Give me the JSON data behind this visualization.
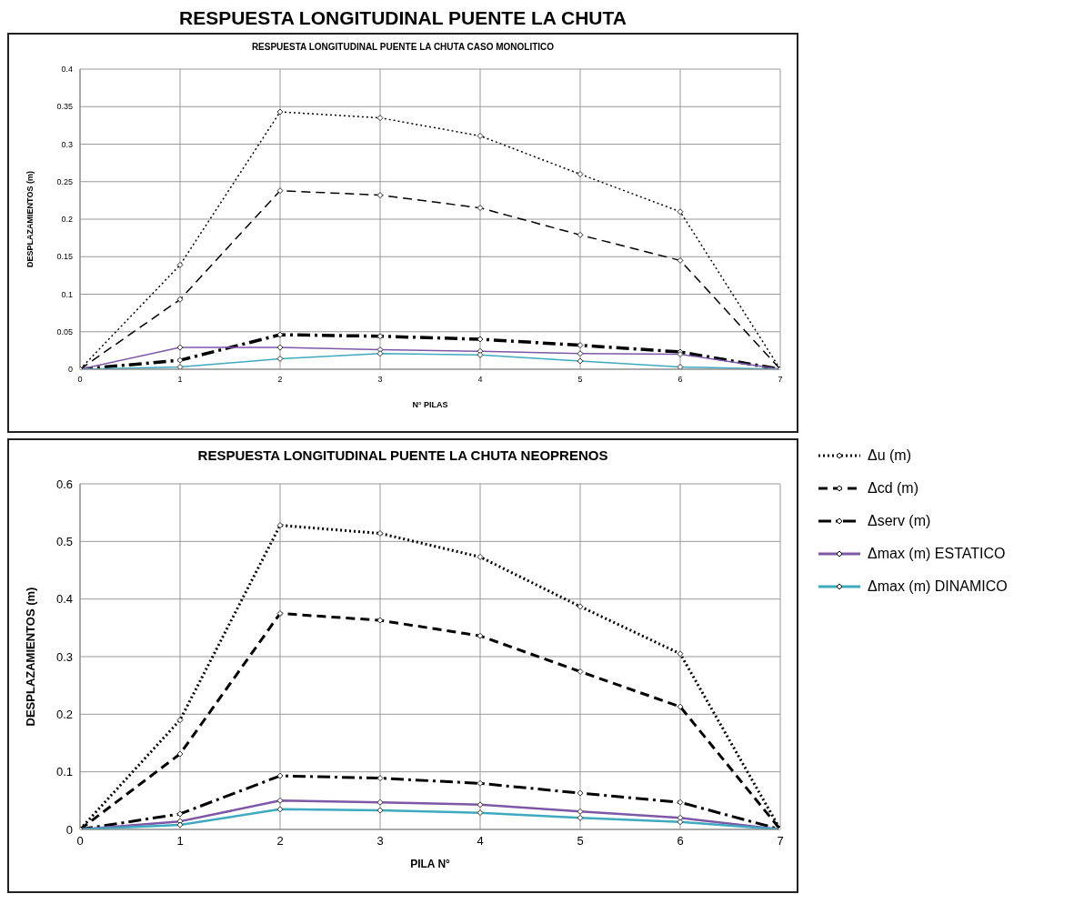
{
  "chart_data": [
    {
      "type": "line",
      "title": "RESPUESTA LONGITUDINAL PUENTE LA CHUTA",
      "subtitle": "RESPUESTA LONGITUDINAL PUENTE LA CHUTA CASO MONOLITICO",
      "xlabel": "N° PILAS",
      "ylabel": "DESPLAZAMIENTOS (m)",
      "x": [
        0,
        1,
        2,
        3,
        4,
        5,
        6,
        7
      ],
      "xlim": [
        0,
        7
      ],
      "xticks": [
        0,
        1,
        2,
        3,
        4,
        5,
        6,
        7
      ],
      "ylim": [
        0,
        0.4
      ],
      "yticks": [
        0,
        0.05,
        0.1,
        0.15,
        0.2,
        0.25,
        0.3,
        0.35,
        0.4
      ],
      "grid": true,
      "marker": "diamond",
      "legend": false,
      "series": [
        {
          "color": "#000000",
          "line_style": "dotted",
          "values": [
            0,
            0.139,
            0.343,
            0.335,
            0.311,
            0.26,
            0.21,
            0
          ]
        },
        {
          "color": "#000000",
          "line_style": "dashed",
          "values": [
            0,
            0.093,
            0.238,
            0.232,
            0.215,
            0.179,
            0.145,
            0
          ]
        },
        {
          "color": "#000000",
          "line_style": "dashdot",
          "values": [
            0,
            0.012,
            0.046,
            0.044,
            0.04,
            0.032,
            0.023,
            0
          ]
        },
        {
          "color": "#7e57a8",
          "line_style": "solid",
          "values": [
            0,
            0.029,
            0.029,
            0.026,
            0.024,
            0.021,
            0.02,
            0
          ]
        },
        {
          "color": "#3fa9c0",
          "line_style": "solid",
          "values": [
            0,
            0.003,
            0.014,
            0.021,
            0.019,
            0.011,
            0.003,
            0
          ]
        }
      ]
    },
    {
      "type": "line",
      "title": "RESPUESTA  LONGITUDINAL PUENTE  LA CHUTA  NEOPRENOS",
      "xlabel": "PILA N°",
      "ylabel": "DESPLAZAMIENTOS  (m)",
      "x": [
        0,
        1,
        2,
        3,
        4,
        5,
        6,
        7
      ],
      "xlim": [
        0,
        7
      ],
      "xticks": [
        0,
        1,
        2,
        3,
        4,
        5,
        6,
        7
      ],
      "ylim": [
        0,
        0.6
      ],
      "yticks": [
        0,
        0.1,
        0.2,
        0.3,
        0.4,
        0.5,
        0.6
      ],
      "grid": true,
      "marker": "diamond",
      "legend": "right",
      "series": [
        {
          "name": "Δu (m)",
          "color": "#000000",
          "line_style": "dotted",
          "values": [
            0,
            0.19,
            0.528,
            0.514,
            0.473,
            0.387,
            0.305,
            0
          ]
        },
        {
          "name": "Δcd (m)",
          "color": "#000000",
          "line_style": "dashed",
          "values": [
            0,
            0.131,
            0.375,
            0.363,
            0.336,
            0.274,
            0.213,
            0
          ]
        },
        {
          "name": "Δserv (m)",
          "color": "#000000",
          "line_style": "dashdot",
          "values": [
            0,
            0.027,
            0.093,
            0.089,
            0.08,
            0.063,
            0.047,
            0
          ]
        },
        {
          "name": "Δmax (m) ESTATICO",
          "color": "#7e57a8",
          "line_style": "solid",
          "values": [
            0,
            0.014,
            0.05,
            0.047,
            0.043,
            0.031,
            0.02,
            0
          ]
        },
        {
          "name": "Δmax (m) DINAMICO",
          "color": "#3fa9c0",
          "line_style": "solid",
          "values": [
            0,
            0.008,
            0.035,
            0.033,
            0.029,
            0.02,
            0.013,
            0
          ]
        }
      ]
    }
  ]
}
